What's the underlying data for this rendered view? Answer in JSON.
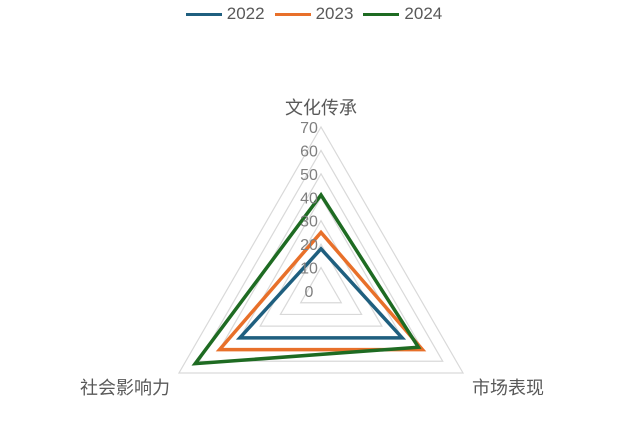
{
  "chart_data": {
    "type": "radar",
    "categories": [
      "文化传承",
      "市场表现",
      "社会影响力"
    ],
    "series": [
      {
        "name": "2022",
        "values": [
          18,
          40,
          40
        ],
        "color": "#1f5f7f"
      },
      {
        "name": "2023",
        "values": [
          25,
          50,
          50
        ],
        "color": "#e8702a"
      },
      {
        "name": "2024",
        "values": [
          41,
          48,
          62
        ],
        "color": "#1e6b22"
      }
    ],
    "radial_ticks": [
      "0",
      "10",
      "20",
      "30",
      "40",
      "50",
      "60",
      "70"
    ],
    "rlim": [
      0,
      70
    ],
    "grid": true,
    "legend": "top"
  }
}
